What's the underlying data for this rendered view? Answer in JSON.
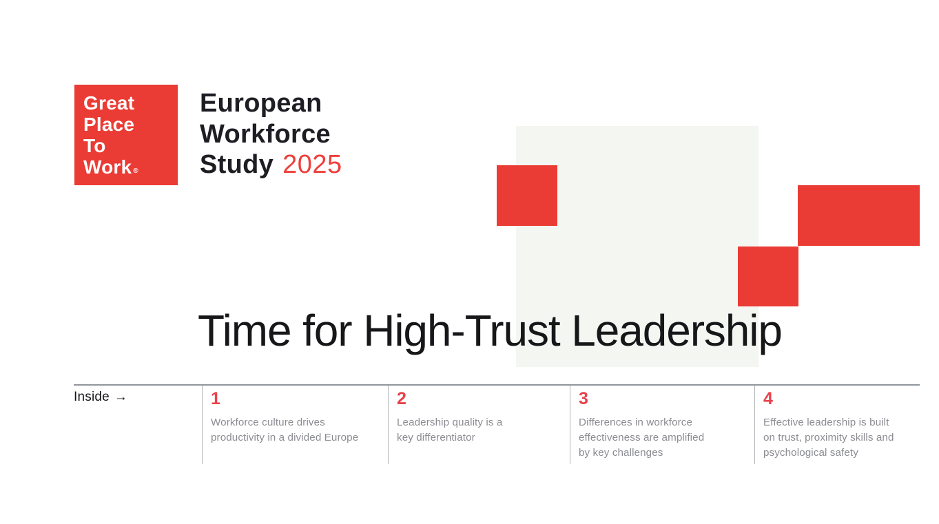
{
  "brand": {
    "logo": {
      "line1": "Great",
      "line2": "Place",
      "line3": "To",
      "line4": "Work",
      "registered_mark": "®"
    },
    "study_title": {
      "line1": "European",
      "line2": "Workforce",
      "line3": "Study",
      "year": "2025"
    }
  },
  "hero": {
    "title": "Time for High-Trust Leadership"
  },
  "inside": {
    "label": "Inside",
    "arrow": "→",
    "items": [
      {
        "number": "1",
        "text": "Workforce culture drives\nproductivity in a divided Europe"
      },
      {
        "number": "2",
        "text": "Leadership quality is a\nkey differentiator"
      },
      {
        "number": "3",
        "text": "Differences in workforce\neffectiveness are amplified\nby key challenges"
      },
      {
        "number": "4",
        "text": "Effective leadership is built\non trust, proximity skills and\npsychological safety"
      }
    ]
  },
  "colors": {
    "brand_red": "#EA3B34",
    "number_red": "#E8424B",
    "year_red": "#EE3E3B",
    "panel_gray": "#F4F6F2",
    "heading_dark": "#1E1D23",
    "hero_dark": "#17171A",
    "body_gray": "#8B8C92",
    "rule_gray": "#8F969C",
    "divider_gray": "#B3B5B6"
  }
}
